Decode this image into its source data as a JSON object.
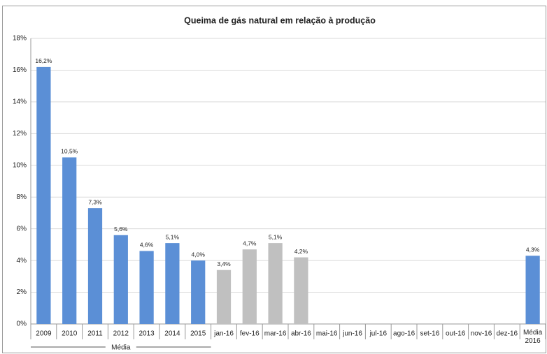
{
  "chart_data": {
    "type": "bar",
    "title": "Queima de gás natural  em relação à produção",
    "categories": [
      "2009",
      "2010",
      "2011",
      "2012",
      "2013",
      "2014",
      "2015",
      "jan-16",
      "fev-16",
      "mar-16",
      "abr-16",
      "mai-16",
      "jun-16",
      "jul-16",
      "ago-16",
      "set-16",
      "out-16",
      "nov-16",
      "dez-16",
      "Média 2016"
    ],
    "values": [
      16.2,
      10.5,
      7.3,
      5.6,
      4.6,
      5.1,
      4.0,
      3.4,
      4.7,
      5.1,
      4.2,
      null,
      null,
      null,
      null,
      null,
      null,
      null,
      null,
      4.3
    ],
    "value_labels": [
      "16,2%",
      "10,5%",
      "7,3%",
      "5,6%",
      "4,6%",
      "5,1%",
      "4,0%",
      "3,4%",
      "4,7%",
      "5,1%",
      "4,2%",
      null,
      null,
      null,
      null,
      null,
      null,
      null,
      null,
      "4,3%"
    ],
    "colors": [
      "#5b8fd6",
      "#5b8fd6",
      "#5b8fd6",
      "#5b8fd6",
      "#5b8fd6",
      "#5b8fd6",
      "#5b8fd6",
      "#c0c0c0",
      "#c0c0c0",
      "#c0c0c0",
      "#c0c0c0",
      "#c0c0c0",
      "#c0c0c0",
      "#c0c0c0",
      "#c0c0c0",
      "#c0c0c0",
      "#c0c0c0",
      "#c0c0c0",
      "#c0c0c0",
      "#5b8fd6"
    ],
    "groups": [
      {
        "name": "Média",
        "from": "2009",
        "to": "2015"
      }
    ],
    "ylim": [
      0,
      18
    ],
    "yticks": [
      {
        "value": 0,
        "label": "0%"
      },
      {
        "value": 2,
        "label": "2%"
      },
      {
        "value": 4,
        "label": "4%"
      },
      {
        "value": 6,
        "label": "6%"
      },
      {
        "value": 8,
        "label": "8%"
      },
      {
        "value": 10,
        "label": "10%"
      },
      {
        "value": 12,
        "label": "12%"
      },
      {
        "value": 14,
        "label": "14%"
      },
      {
        "value": 16,
        "label": "16%"
      },
      {
        "value": 18,
        "label": "18%"
      }
    ],
    "grid": true
  }
}
